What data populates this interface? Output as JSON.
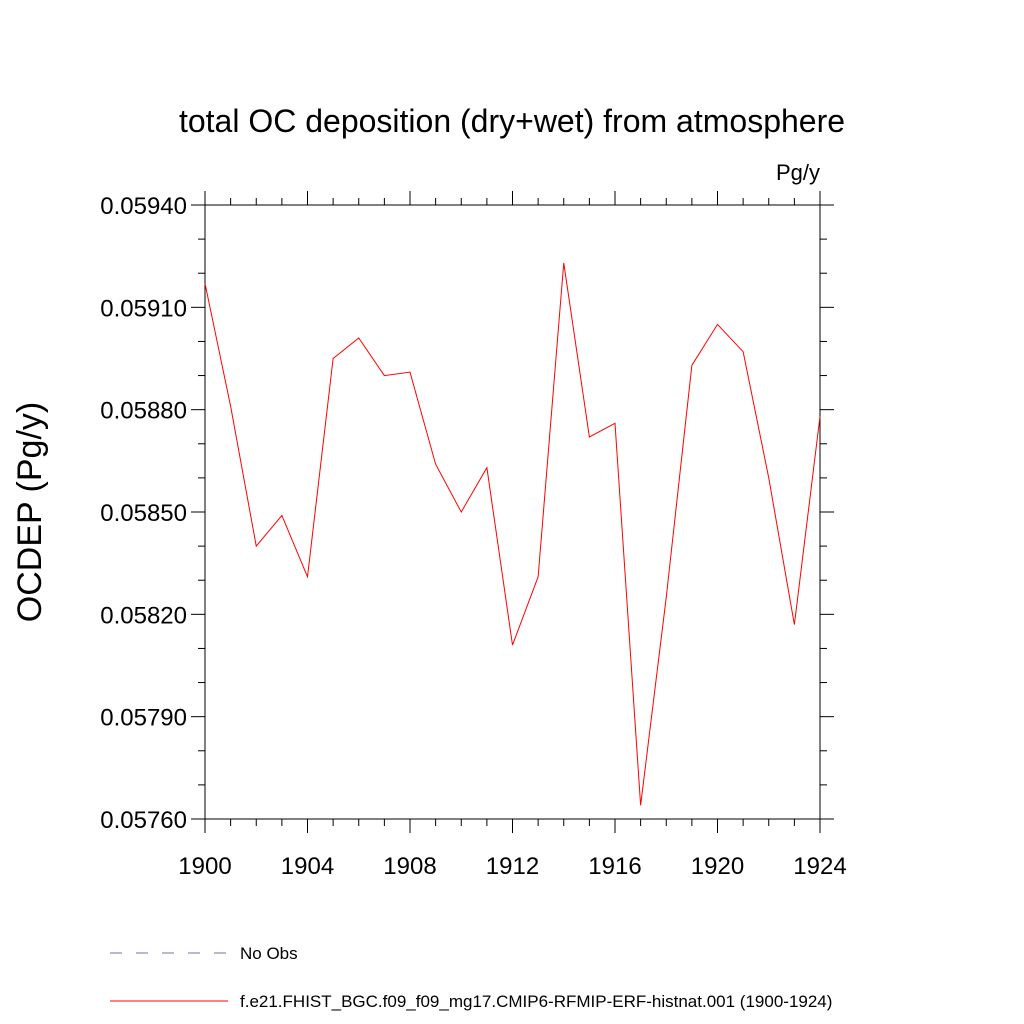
{
  "chart_data": {
    "type": "line",
    "title": "total OC deposition (dry+wet) from atmosphere",
    "units": "Pg/y",
    "xlabel": "",
    "ylabel": "OCDEP  (Pg/y)",
    "xlim": [
      1900,
      1924
    ],
    "ylim": [
      0.0576,
      0.0594
    ],
    "x_ticks": [
      1900,
      1904,
      1908,
      1912,
      1916,
      1920,
      1924
    ],
    "x_tick_labels": [
      "1900",
      "1904",
      "1908",
      "1912",
      "1916",
      "1920",
      "1924"
    ],
    "y_ticks": [
      0.0576,
      0.0579,
      0.0582,
      0.0585,
      0.0588,
      0.0591,
      0.0594
    ],
    "y_tick_labels": [
      "0.05760",
      "0.05790",
      "0.05820",
      "0.05850",
      "0.05880",
      "0.05910",
      "0.05940"
    ],
    "grid": false,
    "legend_position": "bottom",
    "series": [
      {
        "name": "f.e21.FHIST_BGC.f09_f09_mg17.CMIP6-RFMIP-ERF-histnat.001 (1900-1924)",
        "color": "#ff0000",
        "style": "solid",
        "x": [
          1900,
          1901,
          1902,
          1903,
          1904,
          1905,
          1906,
          1907,
          1908,
          1909,
          1910,
          1911,
          1912,
          1913,
          1914,
          1915,
          1916,
          1917,
          1918,
          1919,
          1920,
          1921,
          1922,
          1923,
          1924
        ],
        "values": [
          0.05917,
          0.05881,
          0.0584,
          0.05849,
          0.05831,
          0.05895,
          0.05901,
          0.0589,
          0.05891,
          0.05864,
          0.0585,
          0.05863,
          0.05811,
          0.05831,
          0.05923,
          0.05872,
          0.05876,
          0.05764,
          0.05825,
          0.05893,
          0.05905,
          0.05897,
          0.0586,
          0.05817,
          0.05878
        ]
      },
      {
        "name": "No Obs",
        "color": "#7a6fae",
        "style": "dashed",
        "x": [],
        "values": []
      }
    ]
  }
}
